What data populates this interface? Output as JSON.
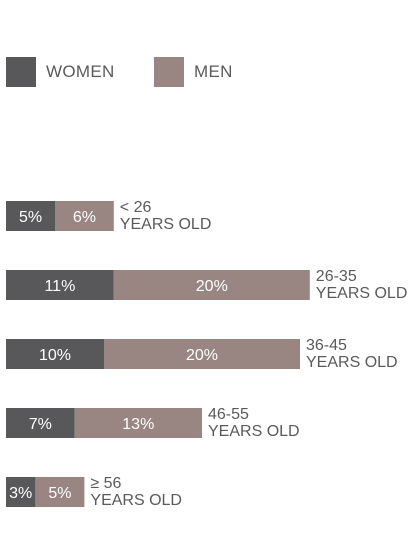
{
  "legend": {
    "women_label": "WOMEN",
    "men_label": "MEN"
  },
  "colors": {
    "women": "#58585a",
    "men": "#998682",
    "bar_text": "#ffffff",
    "category_text": "#5a5a5a"
  },
  "chart_data": {
    "type": "bar",
    "orientation": "horizontal",
    "stacked": true,
    "title": "",
    "xlabel": "",
    "ylabel": "",
    "unit": "%",
    "categories": [
      [
        "< 26",
        "YEARS OLD"
      ],
      [
        "26-35",
        "YEARS OLD"
      ],
      [
        "36-45",
        "YEARS OLD"
      ],
      [
        "46-55",
        "YEARS OLD"
      ],
      [
        "≥ 56",
        "YEARS OLD"
      ]
    ],
    "series": [
      {
        "name": "WOMEN",
        "values": [
          5,
          11,
          10,
          7,
          3
        ],
        "labels": [
          "5%",
          "11%",
          "10%",
          "7%",
          "3%"
        ]
      },
      {
        "name": "MEN",
        "values": [
          6,
          20,
          20,
          13,
          5
        ],
        "labels": [
          "6%",
          "20%",
          "20%",
          "13%",
          "5%"
        ]
      }
    ],
    "grid": false,
    "legend_position": "top-left"
  }
}
